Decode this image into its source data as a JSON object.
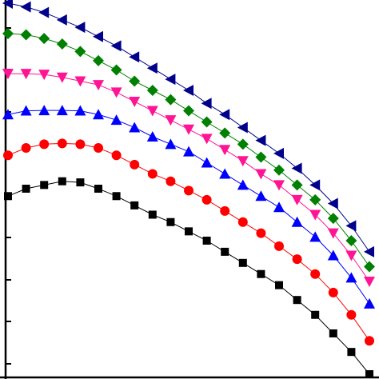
{
  "chart_data": {
    "type": "line",
    "title": "",
    "xlabel": "",
    "ylabel": "",
    "grid": false,
    "legend": "none",
    "xlim": [
      0,
      1
    ],
    "ylim": [
      0,
      1
    ],
    "x": [
      0.0,
      0.05,
      0.1,
      0.15,
      0.2,
      0.25,
      0.3,
      0.35,
      0.4,
      0.45,
      0.5,
      0.55,
      0.6,
      0.65,
      0.7,
      0.75,
      0.8,
      0.85,
      0.9,
      0.95,
      1.0
    ],
    "series": [
      {
        "marker": "square",
        "color": "#000000",
        "values": [
          0.48,
          0.5,
          0.51,
          0.52,
          0.517,
          0.5,
          0.48,
          0.455,
          0.43,
          0.41,
          0.385,
          0.36,
          0.33,
          0.3,
          0.27,
          0.24,
          0.2,
          0.16,
          0.11,
          0.06,
          0.0
        ]
      },
      {
        "marker": "circle",
        "color": "#ff0000",
        "values": [
          0.59,
          0.61,
          0.62,
          0.622,
          0.62,
          0.61,
          0.59,
          0.565,
          0.54,
          0.52,
          0.495,
          0.47,
          0.44,
          0.41,
          0.38,
          0.345,
          0.31,
          0.27,
          0.22,
          0.16,
          0.09
        ]
      },
      {
        "marker": "triangle-up",
        "color": "#0000ff",
        "values": [
          0.7,
          0.71,
          0.711,
          0.711,
          0.71,
          0.7,
          0.685,
          0.665,
          0.64,
          0.62,
          0.6,
          0.57,
          0.54,
          0.51,
          0.48,
          0.45,
          0.41,
          0.37,
          0.32,
          0.26,
          0.19
        ]
      },
      {
        "marker": "triangle-down",
        "color": "#ff1493",
        "values": [
          0.81,
          0.81,
          0.808,
          0.8,
          0.79,
          0.78,
          0.76,
          0.735,
          0.71,
          0.685,
          0.66,
          0.635,
          0.605,
          0.575,
          0.54,
          0.51,
          0.47,
          0.43,
          0.38,
          0.32,
          0.25
        ]
      },
      {
        "marker": "diamond",
        "color": "#008000",
        "values": [
          0.918,
          0.915,
          0.905,
          0.89,
          0.87,
          0.845,
          0.82,
          0.79,
          0.765,
          0.74,
          0.71,
          0.68,
          0.65,
          0.62,
          0.585,
          0.55,
          0.51,
          0.47,
          0.42,
          0.36,
          0.29
        ]
      },
      {
        "marker": "triangle-left",
        "color": "#00008b",
        "values": [
          1.0,
          0.99,
          0.975,
          0.955,
          0.935,
          0.91,
          0.885,
          0.855,
          0.825,
          0.795,
          0.765,
          0.73,
          0.7,
          0.665,
          0.63,
          0.595,
          0.555,
          0.51,
          0.46,
          0.4,
          0.33
        ]
      }
    ]
  }
}
